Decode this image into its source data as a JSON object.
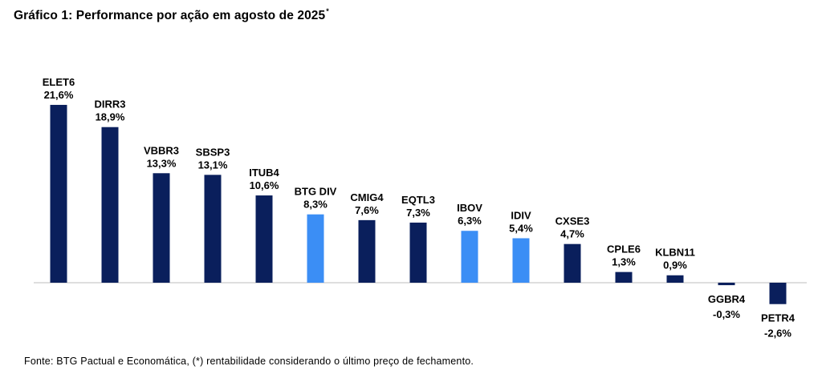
{
  "title": "Gráfico 1: Performance por ação em agosto de 2025",
  "title_sup": "*",
  "source": "Fonte: BTG Pactual e Economática, (*) rentabilidade considerando o último preço de fechamento.",
  "colors": {
    "primary_bar": "#0a1f5c",
    "highlight_bar": "#3b8ef5",
    "axis": "#c9c9c9"
  },
  "chart_data": {
    "type": "bar",
    "title": "Gráfico 1: Performance por ação em agosto de 2025",
    "categories": [
      "ELET6",
      "DIRR3",
      "VBBR3",
      "SBSP3",
      "ITUB4",
      "BTG DIV",
      "CMIG4",
      "EQTL3",
      "IBOV",
      "IDIV",
      "CXSE3",
      "CPLE6",
      "KLBN11",
      "GGBR4",
      "PETR4"
    ],
    "values": [
      21.6,
      18.9,
      13.3,
      13.1,
      10.6,
      8.3,
      7.6,
      7.3,
      6.3,
      5.4,
      4.7,
      1.3,
      0.9,
      -0.3,
      -2.6
    ],
    "value_labels": [
      "21,6%",
      "18,9%",
      "13,3%",
      "13,1%",
      "10,6%",
      "8,3%",
      "7,6%",
      "7,3%",
      "6,3%",
      "5,4%",
      "4,7%",
      "1,3%",
      "0,9%",
      "-0,3%",
      "-2,6%"
    ],
    "highlighted": [
      "BTG DIV",
      "IBOV",
      "IDIV"
    ],
    "unit": "%",
    "grid": false,
    "legend": "none"
  }
}
